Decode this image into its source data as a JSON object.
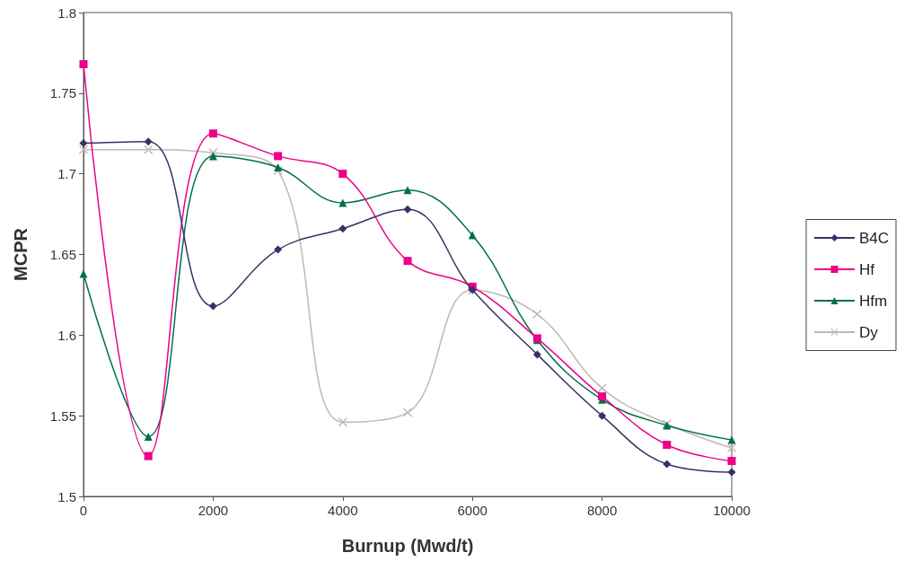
{
  "chart_data": {
    "type": "line",
    "xlabel": "Burnup (Mwd/t)",
    "ylabel": "MCPR",
    "x": [
      0,
      1000,
      2000,
      3000,
      4000,
      5000,
      6000,
      7000,
      8000,
      9000,
      10000
    ],
    "xlim": [
      0,
      10000
    ],
    "xticks": [
      0,
      2000,
      4000,
      6000,
      8000,
      10000
    ],
    "ylim": [
      1.5,
      1.8
    ],
    "yticks": [
      1.5,
      1.55,
      1.6,
      1.65,
      1.7,
      1.75,
      1.8
    ],
    "grid": false,
    "legend": "right",
    "line_style": "solid",
    "series": [
      {
        "name": "B4C",
        "color": "#333366",
        "marker": "diamond",
        "values": [
          1.719,
          1.72,
          1.618,
          1.653,
          1.666,
          1.678,
          1.628,
          1.588,
          1.55,
          1.52,
          1.515
        ]
      },
      {
        "name": "Hf",
        "color": "#ec008c",
        "marker": "square",
        "values": [
          1.768,
          1.525,
          1.725,
          1.711,
          1.7,
          1.646,
          1.63,
          1.598,
          1.562,
          1.532,
          1.522
        ]
      },
      {
        "name": "Hfm",
        "color": "#00704a",
        "marker": "triangle",
        "values": [
          1.638,
          1.537,
          1.711,
          1.704,
          1.682,
          1.69,
          1.662,
          1.597,
          1.56,
          1.544,
          1.535
        ]
      },
      {
        "name": "Dy",
        "color": "#c0b8b4",
        "marker": "cross",
        "values": [
          1.715,
          1.715,
          1.713,
          1.702,
          1.546,
          1.552,
          1.628,
          1.613,
          1.567,
          1.545,
          1.53
        ]
      }
    ]
  }
}
